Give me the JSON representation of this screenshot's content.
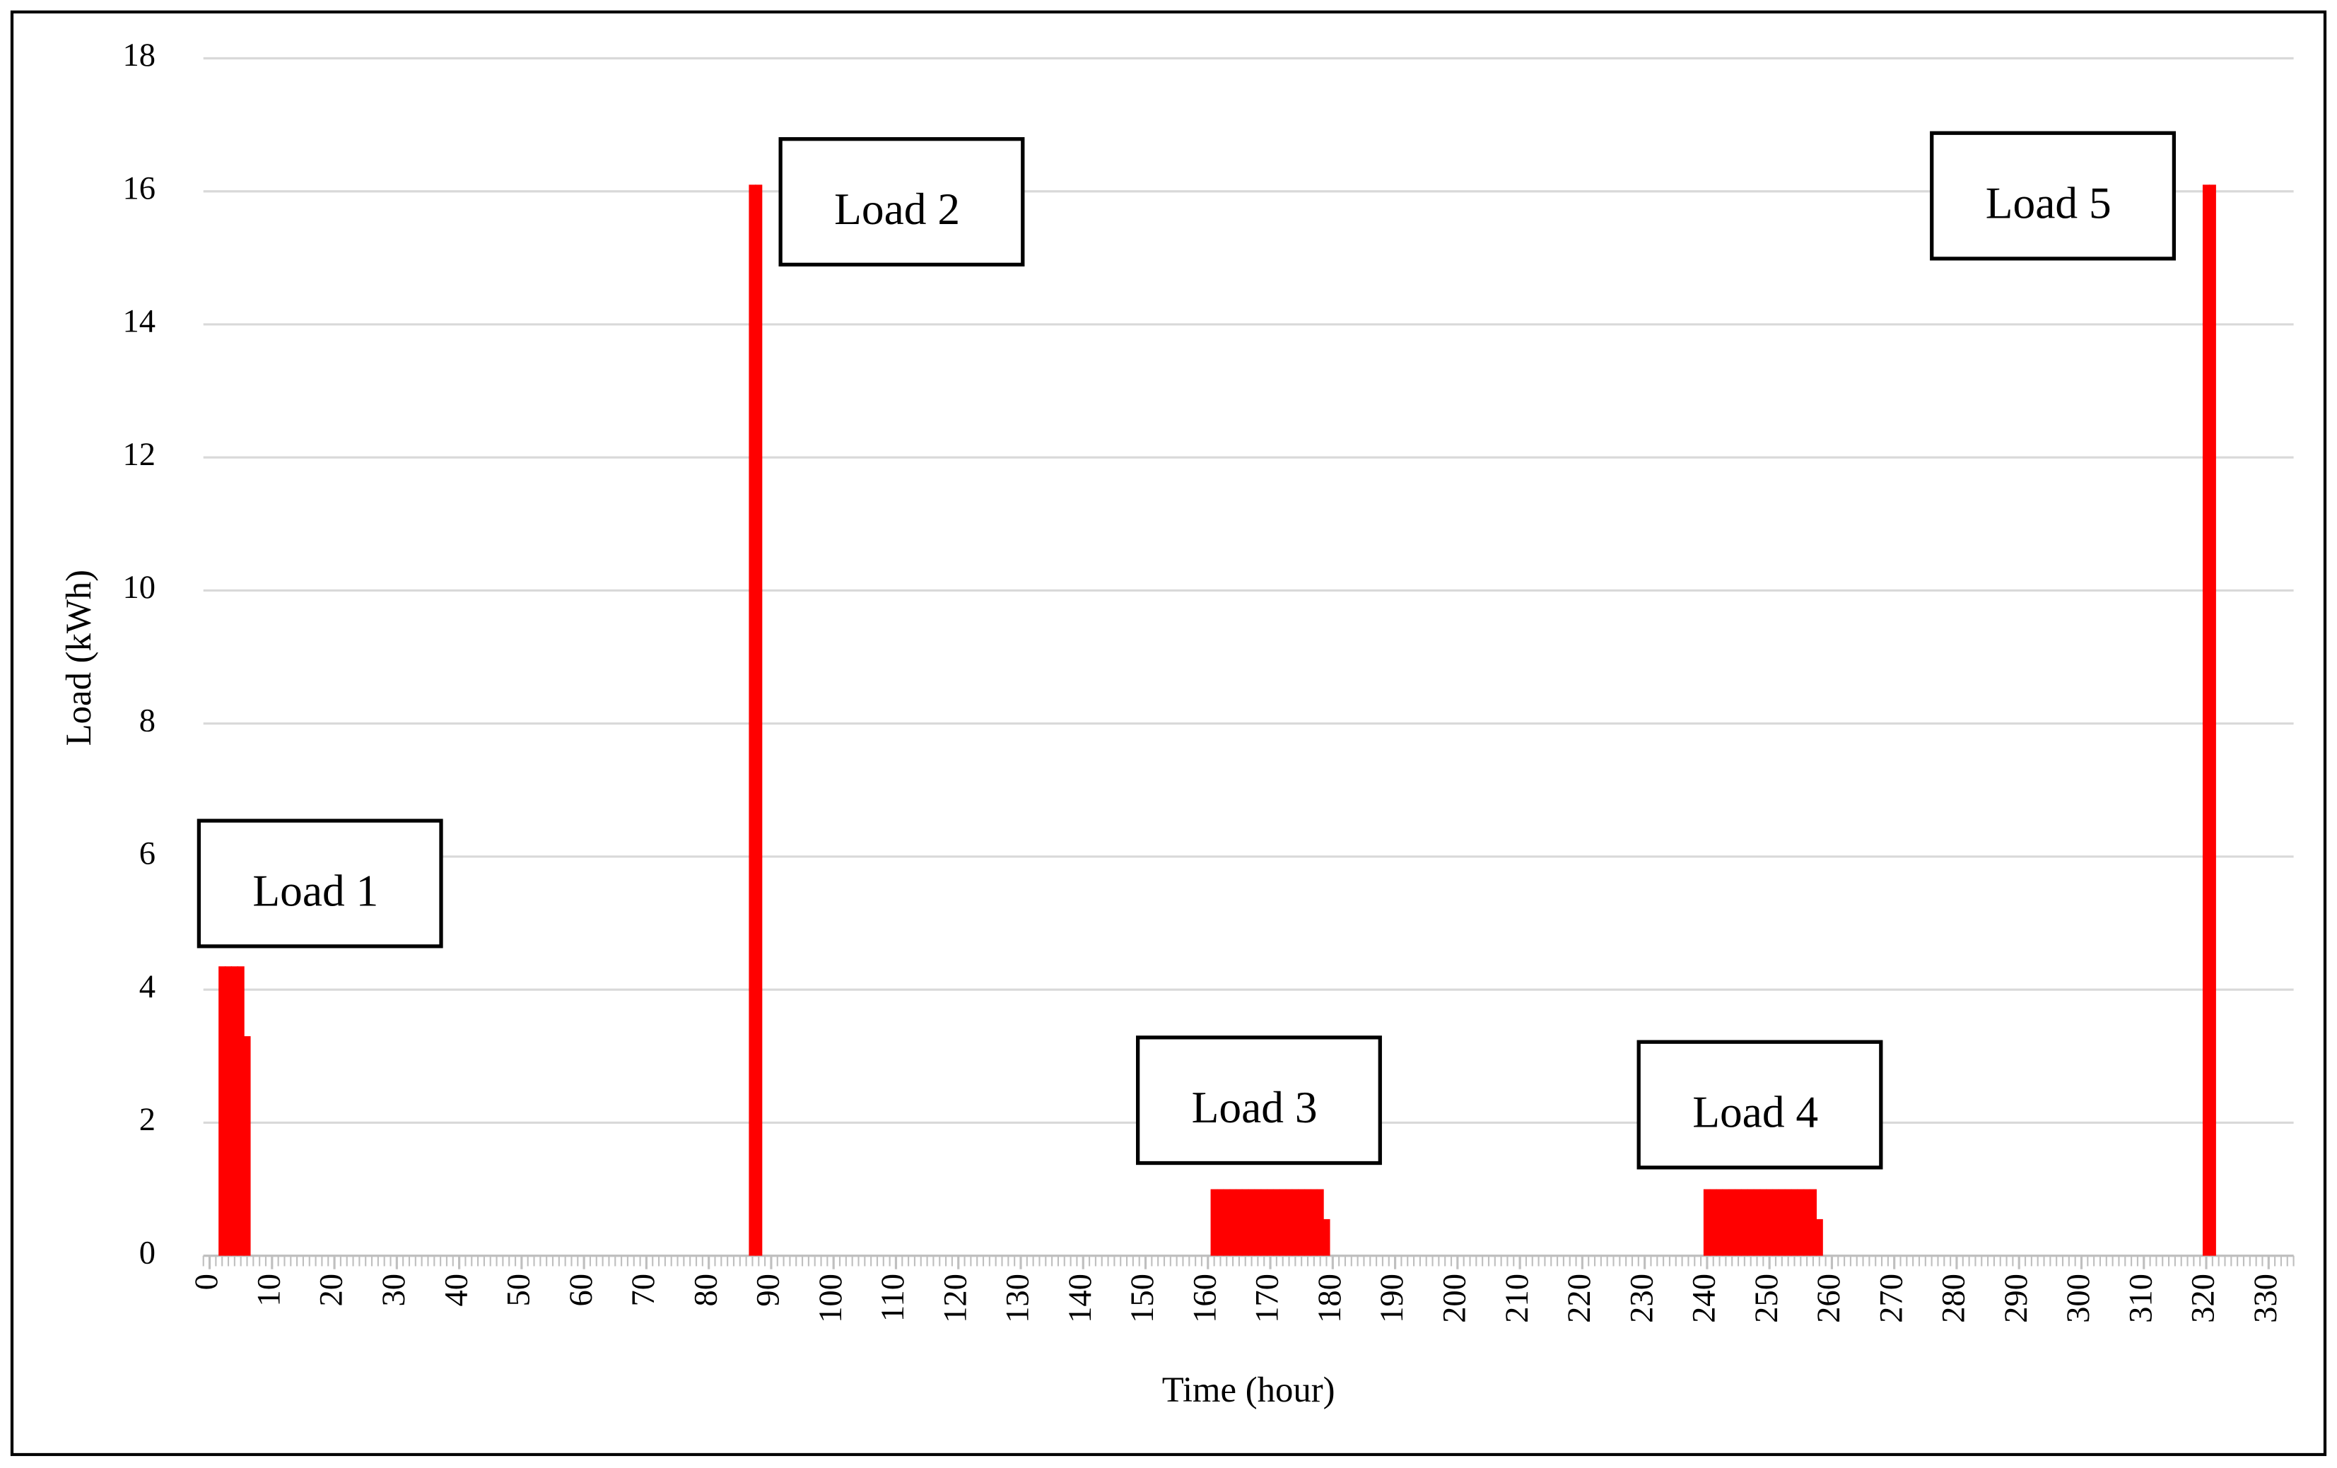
{
  "chart_data": {
    "type": "bar",
    "x_label": "Time (hour)",
    "y_label": "Load (kWh)",
    "x": [
      2,
      3,
      4,
      5,
      6,
      87,
      88,
      161,
      162,
      163,
      164,
      165,
      166,
      167,
      168,
      169,
      170,
      171,
      172,
      173,
      174,
      175,
      176,
      177,
      178,
      179,
      240,
      241,
      242,
      243,
      244,
      245,
      246,
      247,
      248,
      249,
      250,
      251,
      252,
      253,
      254,
      255,
      256,
      257,
      258,
      320,
      321
    ],
    "series": [
      {
        "color": "#ff0000",
        "values": [
          4.35,
          4.35,
          4.35,
          4.35,
          3.3,
          16.1,
          16.1,
          1,
          1,
          1,
          1,
          1,
          1,
          1,
          1,
          1,
          1,
          1,
          1,
          1,
          1,
          1,
          1,
          1,
          1,
          0.55,
          1,
          1,
          1,
          1,
          1,
          1,
          1,
          1,
          1,
          1,
          1,
          1,
          1,
          1,
          1,
          1,
          1,
          1,
          0.55,
          16.1,
          16.1
        ]
      }
    ],
    "xlim": [
      -1,
      334
    ],
    "xticks": [
      0,
      10,
      20,
      30,
      40,
      50,
      60,
      70,
      80,
      90,
      100,
      110,
      120,
      130,
      140,
      150,
      160,
      170,
      180,
      190,
      200,
      210,
      220,
      230,
      240,
      250,
      260,
      270,
      280,
      290,
      300,
      310,
      320,
      330
    ],
    "ylim": [
      0,
      18
    ],
    "yticks": [
      0,
      2,
      4,
      6,
      8,
      10,
      12,
      14,
      16,
      18
    ],
    "grid": true,
    "annotations": [
      "Load 1",
      "Load 2",
      "Load 3",
      "Load 4",
      "Load 5"
    ]
  }
}
